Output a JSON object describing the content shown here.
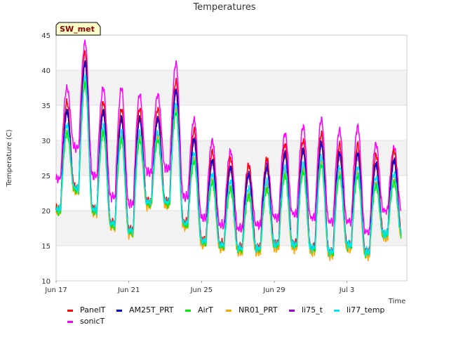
{
  "chart_data": {
    "type": "line",
    "title": "Temperatures",
    "station_label": "SW_met",
    "xlabel": "Time",
    "ylabel": "Temperature (C)",
    "x_start": "Jun 17",
    "x_range_days": [
      0,
      19.3
    ],
    "x_ticks": [
      {
        "label": "Jun 17",
        "day": 0
      },
      {
        "label": "Jun 21",
        "day": 4
      },
      {
        "label": "Jun 25",
        "day": 8
      },
      {
        "label": "Jun 29",
        "day": 12
      },
      {
        "label": "Jul 3",
        "day": 16
      }
    ],
    "ylim": [
      10,
      45
    ],
    "y_ticks": [
      10,
      15,
      20,
      25,
      30,
      35,
      40,
      45
    ],
    "grid_bands": true,
    "legend_position": "bottom",
    "series_colors": {
      "PanelT": "#ff0000",
      "AM25T_PRT": "#0000cc",
      "AirT": "#00ee00",
      "NR01_PRT": "#ffa500",
      "li75_t": "#9400d3",
      "li77_temp": "#00e5ee",
      "sonicT": "#ff00ff"
    },
    "legend": [
      "PanelT",
      "AM25T_PRT",
      "AirT",
      "NR01_PRT",
      "li75_t",
      "li77_temp",
      "sonicT"
    ],
    "daily_extremes": [
      {
        "day": 0,
        "sonicT_max": 37.5,
        "sonicT_min": 24.5,
        "AirT_max": 31.0,
        "AirT_min": 20.0
      },
      {
        "day": 1,
        "sonicT_max": 44.0,
        "sonicT_min": 29.0,
        "AirT_max": 38.0,
        "AirT_min": 23.0
      },
      {
        "day": 2,
        "sonicT_max": 37.5,
        "sonicT_min": 25.0,
        "AirT_max": 31.0,
        "AirT_min": 20.0
      },
      {
        "day": 3,
        "sonicT_max": 37.5,
        "sonicT_min": 22.0,
        "AirT_max": 30.0,
        "AirT_min": 18.0
      },
      {
        "day": 4,
        "sonicT_max": 36.5,
        "sonicT_min": 21.0,
        "AirT_max": 30.0,
        "AirT_min": 17.0
      },
      {
        "day": 5,
        "sonicT_max": 36.5,
        "sonicT_min": 25.5,
        "AirT_max": 30.0,
        "AirT_min": 21.0
      },
      {
        "day": 6,
        "sonicT_max": 41.0,
        "sonicT_min": 26.0,
        "AirT_max": 34.0,
        "AirT_min": 21.0
      },
      {
        "day": 7,
        "sonicT_max": 33.0,
        "sonicT_min": 22.0,
        "AirT_max": 27.0,
        "AirT_min": 18.0
      },
      {
        "day": 8,
        "sonicT_max": 30.0,
        "sonicT_min": 19.0,
        "AirT_max": 24.0,
        "AirT_min": 15.5
      },
      {
        "day": 9,
        "sonicT_max": 28.5,
        "sonicT_min": 18.0,
        "AirT_max": 23.0,
        "AirT_min": 15.0
      },
      {
        "day": 10,
        "sonicT_max": 26.5,
        "sonicT_min": 17.5,
        "AirT_max": 22.0,
        "AirT_min": 14.5
      },
      {
        "day": 11,
        "sonicT_max": 27.0,
        "sonicT_min": 18.0,
        "AirT_max": 23.0,
        "AirT_min": 14.5
      },
      {
        "day": 12,
        "sonicT_max": 31.0,
        "sonicT_min": 19.0,
        "AirT_max": 25.0,
        "AirT_min": 15.0
      },
      {
        "day": 13,
        "sonicT_max": 32.0,
        "sonicT_min": 19.5,
        "AirT_max": 25.5,
        "AirT_min": 15.0
      },
      {
        "day": 14,
        "sonicT_max": 33.0,
        "sonicT_min": 19.0,
        "AirT_max": 26.5,
        "AirT_min": 14.5
      },
      {
        "day": 15,
        "sonicT_max": 31.5,
        "sonicT_min": 18.5,
        "AirT_max": 25.0,
        "AirT_min": 14.0
      },
      {
        "day": 16,
        "sonicT_max": 32.0,
        "sonicT_min": 18.5,
        "AirT_max": 25.0,
        "AirT_min": 15.0
      },
      {
        "day": 17,
        "sonicT_max": 29.5,
        "sonicT_min": 17.0,
        "AirT_max": 23.5,
        "AirT_min": 14.0
      },
      {
        "day": 18,
        "sonicT_max": 29.0,
        "sonicT_min": 20.0,
        "AirT_max": 24.0,
        "AirT_min": 16.5
      }
    ],
    "series_offsets_from_AirT": {
      "PanelT": {
        "max": 4.5,
        "min": 0.3
      },
      "AM25T_PRT": {
        "max": 3.2,
        "min": 0.1
      },
      "AirT": {
        "max": 0.0,
        "min": 0.0
      },
      "NR01_PRT": {
        "max": 0.5,
        "min": -0.4
      },
      "li75_t": {
        "max": 3.0,
        "min": 0.2
      },
      "li77_temp": {
        "max": 1.2,
        "min": 0.2
      }
    }
  }
}
